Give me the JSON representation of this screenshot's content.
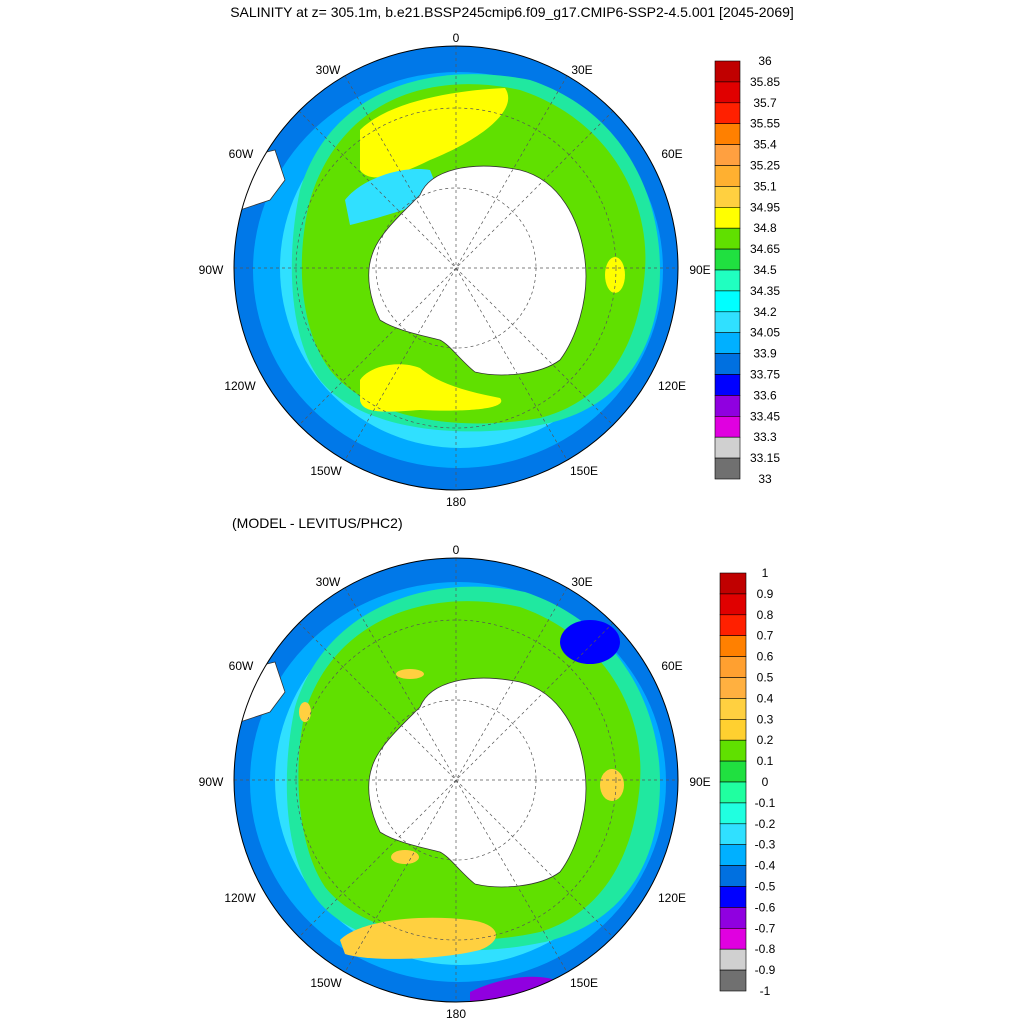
{
  "title": "SALINITY at z= 305.1m, b.e21.BSSP245cmip6.f09_g17.CMIP6-SSP2-4.5.001 [2045-2069]",
  "subtitle": "(MODEL - LEVITUS/PHC2)",
  "longitude_labels": {
    "lon_0": "0",
    "lon_30e": "30E",
    "lon_60e": "60E",
    "lon_90e": "90E",
    "lon_120e": "120E",
    "lon_150e": "150E",
    "lon_180": "180",
    "lon_150w": "150W",
    "lon_120w": "120W",
    "lon_90w": "90W",
    "lon_60w": "60W",
    "lon_30w": "30W"
  },
  "colorbar_top": {
    "labels": [
      "36",
      "35.85",
      "35.7",
      "35.55",
      "35.4",
      "35.25",
      "35.1",
      "34.95",
      "34.8",
      "34.65",
      "34.5",
      "34.35",
      "34.2",
      "34.05",
      "33.9",
      "33.75",
      "33.6",
      "33.45",
      "33.3",
      "33.15",
      "33"
    ],
    "colors": [
      "#c00000",
      "#e00000",
      "#ff2000",
      "#ff8000",
      "#ffa040",
      "#ffb030",
      "#ffd040",
      "#ffff00",
      "#60e000",
      "#20e040",
      "#20ffc0",
      "#00ffff",
      "#30e0ff",
      "#00b0ff",
      "#0070e0",
      "#0000ff",
      "#9000e0",
      "#e000e0",
      "#d0d0d0",
      "#707070"
    ]
  },
  "colorbar_bottom": {
    "labels": [
      "1",
      "0.9",
      "0.8",
      "0.7",
      "0.6",
      "0.5",
      "0.4",
      "0.3",
      "0.2",
      "0.1",
      "0",
      "-0.1",
      "-0.2",
      "-0.3",
      "-0.4",
      "-0.5",
      "-0.6",
      "-0.7",
      "-0.8",
      "-0.9",
      "-1"
    ],
    "colors": [
      "#c00000",
      "#e00000",
      "#ff2000",
      "#ff8000",
      "#ffa030",
      "#ffb040",
      "#ffd040",
      "#ffd030",
      "#60e000",
      "#20e040",
      "#20ffa0",
      "#20ffe0",
      "#30e0ff",
      "#00b0ff",
      "#0070e0",
      "#0000ff",
      "#9000e0",
      "#e000e0",
      "#d0d0d0",
      "#707070"
    ]
  },
  "map_colors": {
    "outer": "#0078e8",
    "ring2": "#00aaff",
    "ring3": "#30e0ff",
    "ring4": "#20e8a0",
    "green": "#60e000",
    "yellow": "#ffff00",
    "yellow_bottom": "#ffd040",
    "land": "#ffffff",
    "deep_blue": "#0000ff",
    "purple": "#9000e0"
  }
}
